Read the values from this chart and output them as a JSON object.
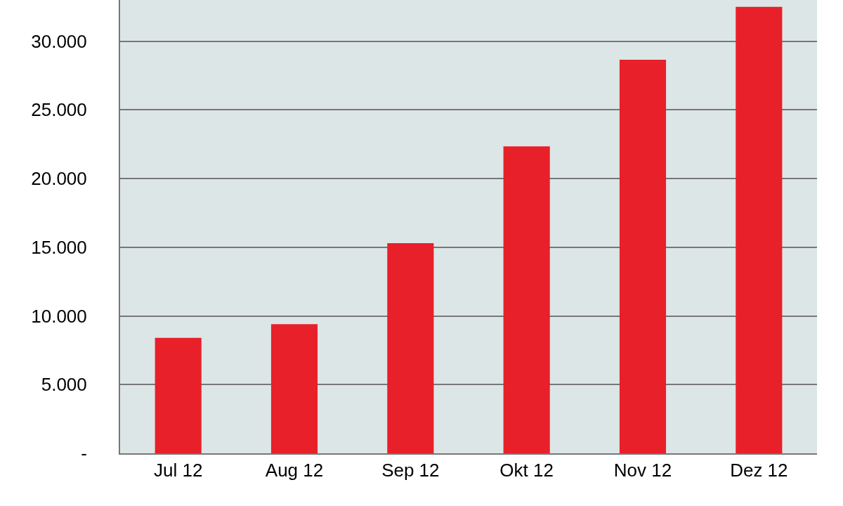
{
  "chart_data": {
    "type": "bar",
    "categories": [
      "Jul 12",
      "Aug 12",
      "Sep 12",
      "Okt 12",
      "Nov 12",
      "Dez 12"
    ],
    "values": [
      8400,
      9400,
      15300,
      22350,
      28650,
      32500
    ],
    "color": "#e8202a",
    "ylim": [
      0,
      33000
    ],
    "yticks": [
      {
        "value": 0,
        "label": "-"
      },
      {
        "value": 5000,
        "label": "5.000"
      },
      {
        "value": 10000,
        "label": "10.000"
      },
      {
        "value": 15000,
        "label": "15.000"
      },
      {
        "value": 20000,
        "label": "20.000"
      },
      {
        "value": 25000,
        "label": "25.000"
      },
      {
        "value": 30000,
        "label": "30.000"
      }
    ],
    "grid": "y"
  }
}
